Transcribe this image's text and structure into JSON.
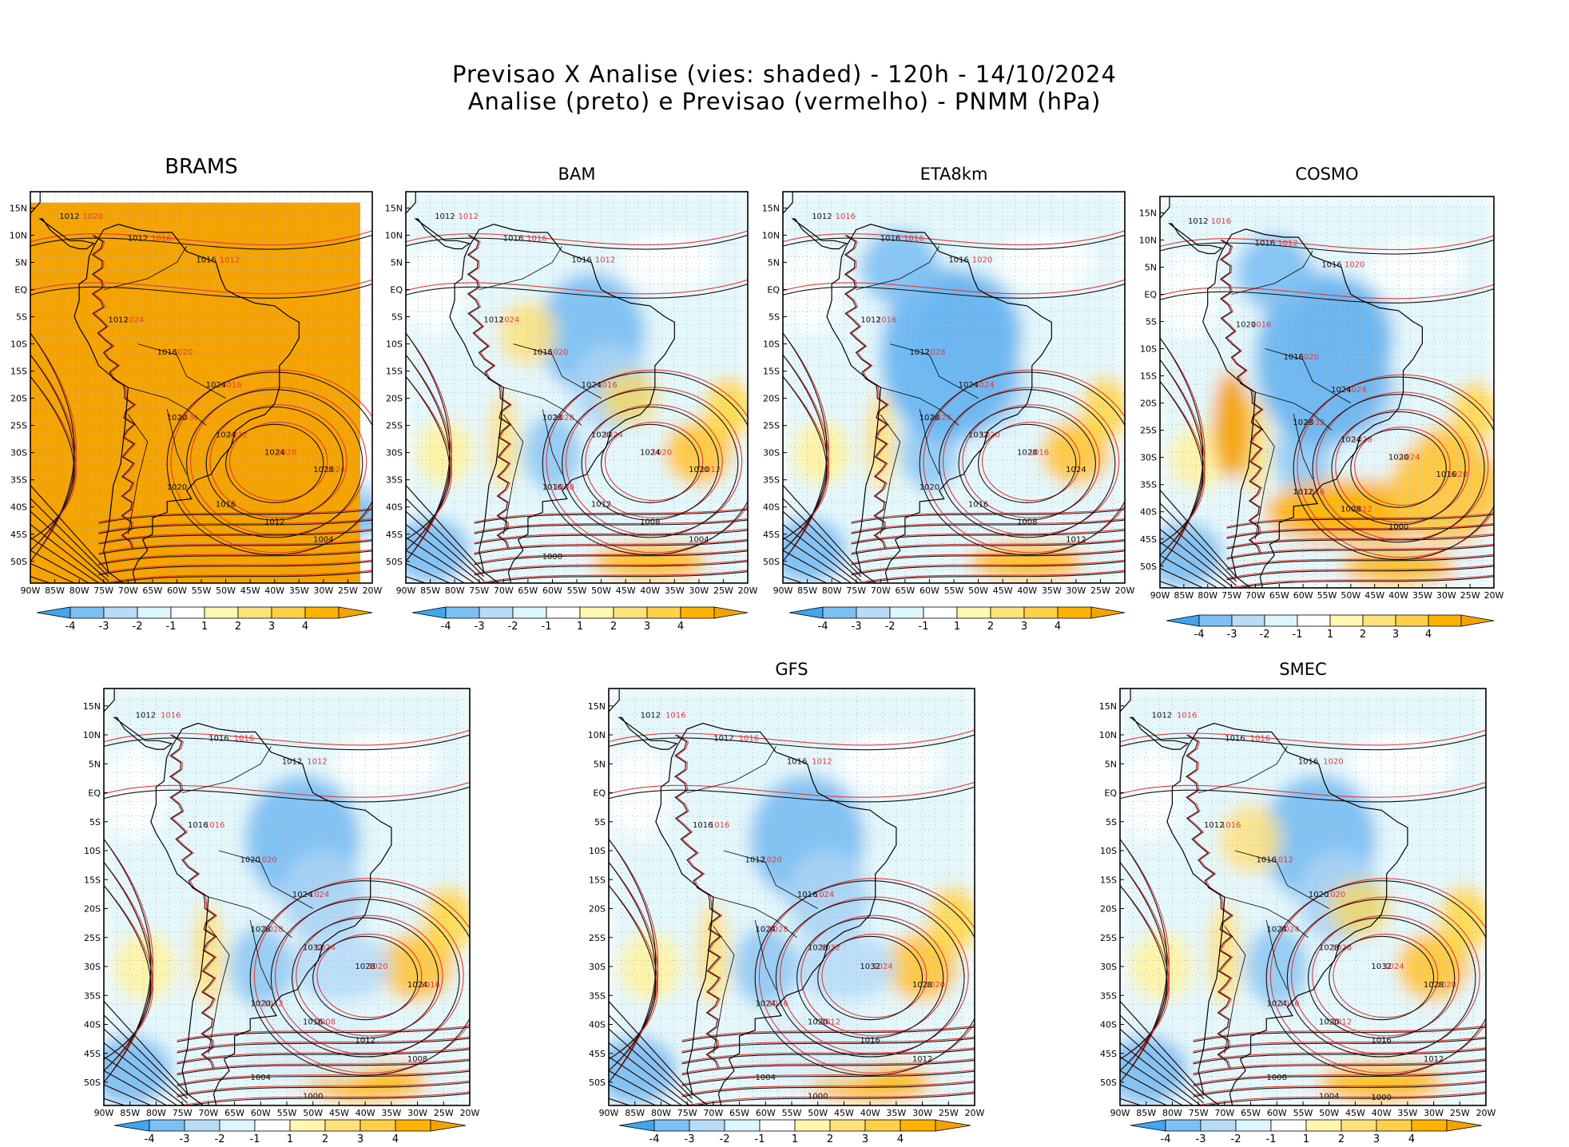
{
  "header": {
    "title_line1": "Previsao X Analise (vies: shaded) - 120h - 14/10/2024",
    "title_line2": "Analise (preto) e Previsao (vermelho) - PNMM (hPa)"
  },
  "axes": {
    "lon_labels": [
      "90W",
      "85W",
      "80W",
      "75W",
      "70W",
      "65W",
      "60W",
      "55W",
      "50W",
      "45W",
      "40W",
      "35W",
      "30W",
      "25W",
      "20W"
    ],
    "lat_labels": [
      "15N",
      "10N",
      "5N",
      "EQ",
      "5S",
      "10S",
      "15S",
      "20S",
      "25S",
      "30S",
      "35S",
      "40S",
      "45S",
      "50S"
    ],
    "lon_range": [
      -90,
      -20
    ],
    "lat_range": [
      -54,
      18
    ]
  },
  "colorbar": {
    "labels": [
      "-4",
      "-3",
      "-2",
      "-1",
      "1",
      "2",
      "3",
      "4"
    ],
    "colors": [
      "#3fa6ef",
      "#7cc0f3",
      "#b7dcf8",
      "#dcf6fb",
      "#ffffff",
      "#fff7b0",
      "#ffe27a",
      "#ffd04a",
      "#ffb300",
      "#f5a300"
    ]
  },
  "colors": {
    "analysis": "#111111",
    "forecast": "#e23b3b",
    "coast": "#000000"
  },
  "panels": [
    {
      "title": "BRAMS",
      "regime": "allpos",
      "black_labels": [
        "1012",
        "1012",
        "1016",
        "1012",
        "1016",
        "1024",
        "1020",
        "1024",
        "1024",
        "1028",
        "1020",
        "1016",
        "1012",
        "1004"
      ],
      "red_labels": [
        "1020",
        "1016",
        "1012",
        "1024",
        "1020",
        "1016",
        "1036",
        "1032",
        "1028",
        "1024"
      ]
    },
    {
      "title": "BAM",
      "regime": "mixed",
      "black_labels": [
        "1012",
        "1016",
        "1016",
        "1012",
        "1016",
        "1024",
        "1028",
        "1020",
        "1024",
        "1020",
        "1016",
        "1012",
        "1008",
        "1004",
        "1000"
      ],
      "red_labels": [
        "1012",
        "1016",
        "1012",
        "1024",
        "1020",
        "1016",
        "1028",
        "1024",
        "1020",
        "1012",
        "1008"
      ]
    },
    {
      "title": "ETA8km",
      "regime": "negland",
      "black_labels": [
        "1012",
        "1016",
        "1016",
        "1012",
        "1012",
        "1024",
        "1028",
        "1032",
        "1028",
        "1024",
        "1020",
        "1016",
        "1008",
        "1012"
      ],
      "red_labels": [
        "1016",
        "1016",
        "1020",
        "1016",
        "1028",
        "1024",
        "1028",
        "1020",
        "1016"
      ]
    },
    {
      "title": "COSMO",
      "regime": "negbig",
      "black_labels": [
        "1012",
        "1016",
        "1016",
        "1020",
        "1016",
        "1024",
        "1028",
        "1024",
        "1020",
        "1016",
        "1012",
        "1008",
        "1000"
      ],
      "red_labels": [
        "1016",
        "1012",
        "1020",
        "1016",
        "1020",
        "1024",
        "1032",
        "1028",
        "1024",
        "1020",
        "1016",
        "1012"
      ]
    },
    {
      "title": "",
      "regime": "negmixed",
      "black_labels": [
        "1012",
        "1016",
        "1012",
        "1016",
        "1020",
        "1024",
        "1028",
        "1032",
        "1028",
        "1024",
        "1020",
        "1016",
        "1012",
        "1008",
        "1004",
        "1000"
      ],
      "red_labels": [
        "1016",
        "1016",
        "1012",
        "1016",
        "1020",
        "1024",
        "1028",
        "1024",
        "1020",
        "1016",
        "1012",
        "1008"
      ]
    },
    {
      "title": "GFS",
      "regime": "negmixed",
      "black_labels": [
        "1012",
        "1012",
        "1016",
        "1016",
        "1012",
        "1016",
        "1024",
        "1028",
        "1032",
        "1028",
        "1024",
        "1020",
        "1016",
        "1012",
        "1004",
        "1000"
      ],
      "red_labels": [
        "1016",
        "1016",
        "1012",
        "1016",
        "1020",
        "1024",
        "1028",
        "1032",
        "1024",
        "1020",
        "1016",
        "1012"
      ]
    },
    {
      "title": "SMEC",
      "regime": "mixed",
      "black_labels": [
        "1012",
        "1016",
        "1016",
        "1012",
        "1016",
        "1020",
        "1024",
        "1028",
        "1032",
        "1028",
        "1024",
        "1020",
        "1016",
        "1012",
        "1008",
        "1004",
        "1000"
      ],
      "red_labels": [
        "1016",
        "1016",
        "1020",
        "1016",
        "1012",
        "1020",
        "1024",
        "1028",
        "1024",
        "1020",
        "1016",
        "1012"
      ]
    }
  ]
}
